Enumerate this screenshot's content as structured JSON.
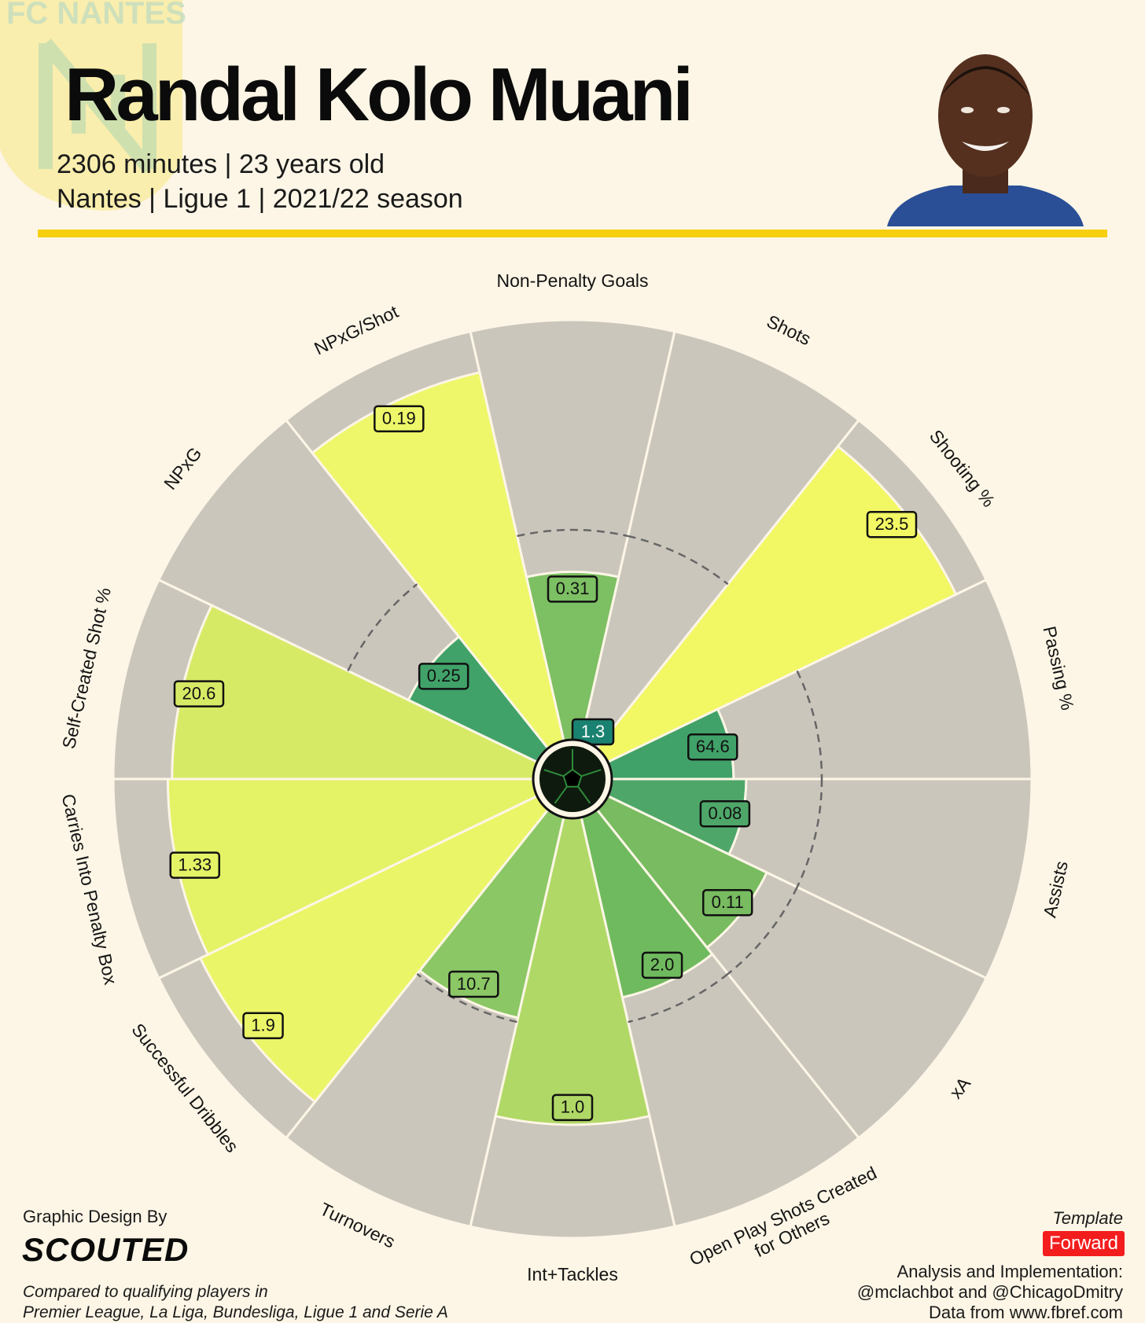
{
  "header": {
    "player_name": "Randal Kolo Muani",
    "subtitle_line1": "2306 minutes | 23 years old",
    "subtitle_line2": "Nantes | Ligue 1 | 2021/22 season",
    "watermark_text": "FC NANTES"
  },
  "colors": {
    "background": "#fdf6e6",
    "accent_rule": "#f6cf0f",
    "wedge_background": "#cbc6bc",
    "template_badge": "#f31d1d"
  },
  "footer": {
    "design_by": "Graphic Design By",
    "brand": "SCOUTED",
    "comparison_line1": "Compared to qualifying players in",
    "comparison_line2": "Premier League, La Liga, Bundesliga, Ligue 1 and Serie A",
    "template_label": "Template",
    "template_value": "Forward",
    "analysis_line1": "Analysis and Implementation:",
    "analysis_line2": "@mclachbot and @ChicagoDmitry",
    "analysis_line3": "Data from www.fbref.com"
  },
  "chart_data": {
    "type": "pizza",
    "title": "Randal Kolo Muani",
    "percentile_range": [
      0,
      100
    ],
    "grid_reference_percentile": 50,
    "metrics": [
      {
        "label": "Non-Penalty Goals",
        "value": "0.31",
        "percentile": 40,
        "color": "#7dbf63"
      },
      {
        "label": "Shots",
        "value": "",
        "percentile": 0,
        "color": "#7dbf63"
      },
      {
        "label": "Shooting %",
        "value": "23.5",
        "percentile": 92,
        "color": "#f2f764"
      },
      {
        "label": "Passing %",
        "value": "64.6",
        "percentile": 29,
        "color": "#41a269"
      },
      {
        "label": "Assists",
        "value": "0.08",
        "percentile": 32,
        "color": "#4ea769"
      },
      {
        "label": "xA",
        "value": "0.11",
        "percentile": 42,
        "color": "#78bb60"
      },
      {
        "label": "Open Play Shots Created\nfor Others",
        "value": "2.0",
        "percentile": 44,
        "color": "#6fba5e"
      },
      {
        "label": "Int+Tackles",
        "value": "1.0",
        "percentile": 73,
        "color": "#b0d866"
      },
      {
        "label": "Turnovers",
        "value": "10.7",
        "percentile": 49,
        "color": "#8bc765"
      },
      {
        "label": "Successful Dribbles",
        "value": "1.9",
        "percentile": 89,
        "color": "#ebf568"
      },
      {
        "label": "Carries Into Penalty Box",
        "value": "1.33",
        "percentile": 87,
        "color": "#e4f266"
      },
      {
        "label": "Self-Created Shot %",
        "value": "20.6",
        "percentile": 86,
        "color": "#d7ea66"
      },
      {
        "label": "NPxG",
        "value": "0.25",
        "percentile": 34,
        "color": "#41a269"
      },
      {
        "label": "NPxG/Shot",
        "value": "0.19",
        "percentile": 90,
        "color": "#eef769"
      },
      {
        "label": "1.3",
        "value": "1.3",
        "percentile": 0,
        "color": "#1a8270",
        "is_center_badge": true
      }
    ]
  }
}
